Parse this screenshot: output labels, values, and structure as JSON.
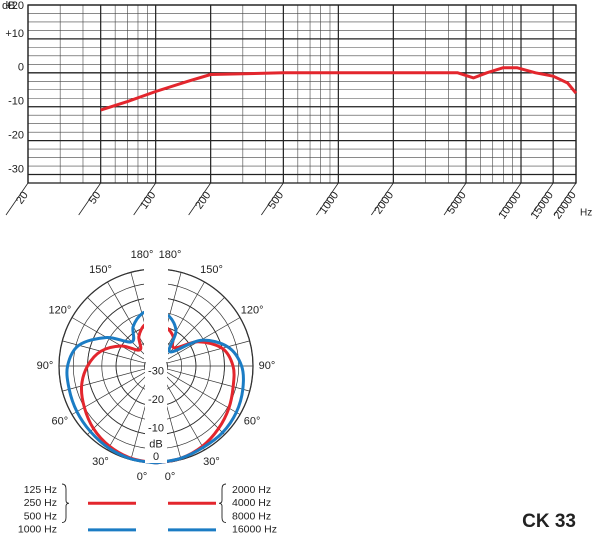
{
  "title": "CK 33",
  "chart_data": [
    {
      "type": "line",
      "y_label": "dB",
      "x_label": "Hz",
      "xscale": "log",
      "grid": true,
      "xlim": [
        20,
        20000
      ],
      "ylim": [
        -32.5,
        20
      ],
      "xticks": [
        20,
        50,
        100,
        200,
        500,
        1000,
        2000,
        5000,
        10000,
        15000,
        20000
      ],
      "yticks": [
        -30,
        -20,
        -10,
        0,
        {
          "value": 10,
          "label": "+10"
        },
        {
          "value": 20,
          "label": "+20"
        }
      ],
      "series": [
        {
          "color": "#e3262d",
          "x": [
            50,
            70,
            100,
            150,
            200,
            500,
            1000,
            2000,
            4500,
            5500,
            6500,
            8000,
            9500,
            12000,
            15000,
            18000,
            20000
          ],
          "values": [
            -11,
            -8.5,
            -5.5,
            -2.5,
            -0.5,
            0,
            0,
            0,
            0,
            -1.5,
            0,
            1.5,
            1.5,
            0,
            -1,
            -3,
            -6
          ]
        }
      ]
    },
    {
      "type": "polar",
      "r_label": "dB",
      "rlim": [
        -34,
        0
      ],
      "rticks": [
        -30,
        -20,
        -10,
        0
      ],
      "angles": [
        0,
        15,
        30,
        45,
        60,
        75,
        90,
        105,
        120,
        135,
        150,
        165,
        180
      ],
      "angle_ticks": [
        {
          "value": 0,
          "label": "0°"
        },
        {
          "value": 30,
          "label": "30°"
        },
        {
          "value": 60,
          "label": "60°"
        },
        {
          "value": 90,
          "label": "90°"
        },
        {
          "value": 120,
          "label": "120°"
        },
        {
          "value": 150,
          "label": "150°"
        },
        {
          "value": 180,
          "label": "180°"
        }
      ],
      "series": [
        {
          "names": [
            "125 Hz",
            "250 Hz",
            "500 Hz"
          ],
          "side": "left",
          "color": "#e3262d",
          "values": [
            0,
            -0.5,
            -1.5,
            -3,
            -5,
            -7,
            -10,
            -14,
            -20,
            -26,
            -22,
            -19,
            -19
          ]
        },
        {
          "names": [
            "1000 Hz"
          ],
          "side": "left",
          "color": "#1b7cc4",
          "values": [
            0,
            -0.3,
            -0.8,
            -1.5,
            -2,
            -2.5,
            -3,
            -6,
            -14,
            -22,
            -18,
            -15,
            -14
          ]
        },
        {
          "names": [
            "2000 Hz",
            "4000 Hz",
            "8000 Hz"
          ],
          "side": "right",
          "color": "#e3262d",
          "values": [
            0,
            -0.5,
            -1.5,
            -3,
            -4.5,
            -6,
            -7,
            -10,
            -17,
            -25,
            -22,
            -20,
            -19
          ]
        },
        {
          "names": [
            "16000 Hz"
          ],
          "side": "right",
          "color": "#1b7cc4",
          "values": [
            0,
            -0.5,
            -1,
            -1,
            -1.5,
            -2.5,
            -4,
            -8,
            -16,
            -27,
            -20,
            -16,
            -15
          ]
        }
      ]
    }
  ]
}
